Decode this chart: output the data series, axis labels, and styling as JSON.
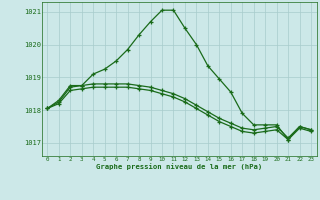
{
  "title": "Graphe pression niveau de la mer (hPa)",
  "background_color": "#cce8e8",
  "grid_color": "#a8cccc",
  "line_color": "#1a6b1a",
  "xlim": [
    -0.5,
    23.5
  ],
  "ylim": [
    1016.6,
    1021.3
  ],
  "yticks": [
    1017,
    1018,
    1019,
    1020,
    1021
  ],
  "xticks": [
    0,
    1,
    2,
    3,
    4,
    5,
    6,
    7,
    8,
    9,
    10,
    11,
    12,
    13,
    14,
    15,
    16,
    17,
    18,
    19,
    20,
    21,
    22,
    23
  ],
  "curve1_x": [
    0,
    1,
    2,
    3,
    4,
    5,
    6,
    7,
    8,
    9,
    10,
    11,
    12,
    13,
    14,
    15,
    16,
    17,
    18,
    19,
    20,
    21,
    22,
    23
  ],
  "curve1_y": [
    1018.05,
    1018.25,
    1018.7,
    1018.75,
    1019.1,
    1019.25,
    1019.5,
    1019.85,
    1020.3,
    1020.7,
    1021.05,
    1021.05,
    1020.5,
    1020.0,
    1019.35,
    1018.95,
    1018.55,
    1017.9,
    1017.55,
    1017.55,
    1017.55,
    1017.1,
    1017.5,
    1017.4
  ],
  "curve2_x": [
    0,
    1,
    2,
    3,
    4,
    5,
    6,
    7,
    8,
    9,
    10,
    11,
    12,
    13,
    14,
    15,
    16,
    17,
    18,
    19,
    20,
    21,
    22,
    23
  ],
  "curve2_y": [
    1018.05,
    1018.3,
    1018.75,
    1018.75,
    1018.8,
    1018.8,
    1018.8,
    1018.8,
    1018.75,
    1018.7,
    1018.6,
    1018.5,
    1018.35,
    1018.15,
    1017.95,
    1017.75,
    1017.6,
    1017.45,
    1017.4,
    1017.45,
    1017.5,
    1017.15,
    1017.5,
    1017.4
  ],
  "curve3_x": [
    0,
    1,
    2,
    3,
    4,
    5,
    6,
    7,
    8,
    9,
    10,
    11,
    12,
    13,
    14,
    15,
    16,
    17,
    18,
    19,
    20,
    21,
    22,
    23
  ],
  "curve3_y": [
    1018.05,
    1018.2,
    1018.6,
    1018.65,
    1018.7,
    1018.7,
    1018.7,
    1018.7,
    1018.65,
    1018.6,
    1018.5,
    1018.4,
    1018.25,
    1018.05,
    1017.85,
    1017.65,
    1017.5,
    1017.35,
    1017.3,
    1017.35,
    1017.4,
    1017.1,
    1017.45,
    1017.35
  ]
}
